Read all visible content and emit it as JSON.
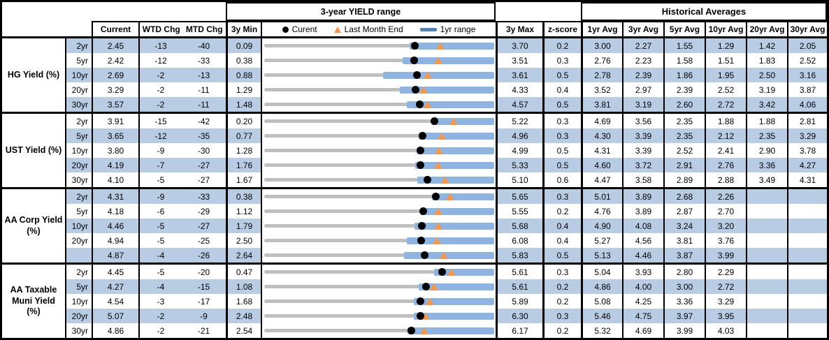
{
  "colors": {
    "row_band": "#b8cce4",
    "range_bar": "#8db4e3",
    "legend_bar": "#4f81bd",
    "track": "#bfbfbf",
    "current_dot": "#000000",
    "last_month_triangle": "#f79646",
    "border": "#000000"
  },
  "chart_data": {
    "type": "range_bullet_table",
    "title": "3-year YIELD range",
    "historical_title": "Historical Averages",
    "legend": [
      {
        "marker": "dot",
        "label": "Curent"
      },
      {
        "marker": "triangle",
        "label": "Last Month End"
      },
      {
        "marker": "bar",
        "label": "1yr range"
      }
    ],
    "columns": [
      "Current",
      "WTD Chg",
      "MTD Chg",
      "3y Min",
      "3y Max",
      "z-score",
      "1yr Avg",
      "3yr Avg",
      "5yr Avg",
      "10yr Avg",
      "20yr Avg",
      "30yr Avg"
    ],
    "axis_note": "each row plotted on its own scale from 3y Min to 3y Max",
    "groups": [
      {
        "label": "HG Yield (%)",
        "label_lines": [
          "HG Yield (%)"
        ],
        "rows": [
          {
            "tenor": "2yr",
            "current": "2.45",
            "wtd_chg": "-13",
            "mtd_chg": "-40",
            "min_3y": "0.09",
            "max_3y": "3.70",
            "last_month_end": 2.85,
            "range_1yr": [
              2.37,
              3.7
            ],
            "z_score": "0.2",
            "averages": [
              "3.00",
              "2.27",
              "1.55",
              "1.29",
              "1.42",
              "2.05"
            ]
          },
          {
            "tenor": "5yr",
            "current": "2.42",
            "wtd_chg": "-12",
            "mtd_chg": "-33",
            "min_3y": "0.38",
            "max_3y": "3.51",
            "last_month_end": 2.75,
            "range_1yr": [
              2.26,
              3.51
            ],
            "z_score": "0.3",
            "averages": [
              "2.76",
              "2.23",
              "1.58",
              "1.51",
              "1.83",
              "2.52"
            ]
          },
          {
            "tenor": "10yr",
            "current": "2.69",
            "wtd_chg": "-2",
            "mtd_chg": "-13",
            "min_3y": "0.88",
            "max_3y": "3.61",
            "last_month_end": 2.82,
            "range_1yr": [
              2.29,
              3.61
            ],
            "z_score": "0.5",
            "averages": [
              "2.78",
              "2.39",
              "1.86",
              "1.95",
              "2.50",
              "3.16"
            ]
          },
          {
            "tenor": "20yr",
            "current": "3.29",
            "wtd_chg": "-2",
            "mtd_chg": "-11",
            "min_3y": "1.29",
            "max_3y": "4.33",
            "last_month_end": 3.4,
            "range_1yr": [
              3.08,
              4.33
            ],
            "z_score": "0.4",
            "averages": [
              "3.52",
              "2.97",
              "2.39",
              "2.52",
              "3.19",
              "3.87"
            ]
          },
          {
            "tenor": "30yr",
            "current": "3.57",
            "wtd_chg": "-2",
            "mtd_chg": "-11",
            "min_3y": "1.48",
            "max_3y": "4.57",
            "last_month_end": 3.68,
            "range_1yr": [
              3.4,
              4.57
            ],
            "z_score": "0.5",
            "averages": [
              "3.81",
              "3.19",
              "2.60",
              "2.72",
              "3.42",
              "4.06"
            ]
          }
        ]
      },
      {
        "label": "UST Yield (%)",
        "label_lines": [
          "UST Yield (%)"
        ],
        "rows": [
          {
            "tenor": "2yr",
            "current": "3.91",
            "wtd_chg": "-15",
            "mtd_chg": "-42",
            "min_3y": "0.20",
            "max_3y": "5.22",
            "last_month_end": 4.33,
            "range_1yr": [
              3.84,
              5.22
            ],
            "z_score": "0.3",
            "averages": [
              "4.69",
              "3.56",
              "2.35",
              "1.88",
              "1.88",
              "2.81"
            ]
          },
          {
            "tenor": "5yr",
            "current": "3.65",
            "wtd_chg": "-12",
            "mtd_chg": "-35",
            "min_3y": "0.77",
            "max_3y": "4.96",
            "last_month_end": 4.0,
            "range_1yr": [
              3.58,
              4.96
            ],
            "z_score": "0.3",
            "averages": [
              "4.30",
              "3.39",
              "2.35",
              "2.12",
              "2.35",
              "3.29"
            ]
          },
          {
            "tenor": "10yr",
            "current": "3.80",
            "wtd_chg": "-9",
            "mtd_chg": "-30",
            "min_3y": "1.28",
            "max_3y": "4.99",
            "last_month_end": 4.1,
            "range_1yr": [
              3.74,
              4.99
            ],
            "z_score": "0.5",
            "averages": [
              "4.31",
              "3.39",
              "2.52",
              "2.41",
              "2.90",
              "3.78"
            ]
          },
          {
            "tenor": "20yr",
            "current": "4.19",
            "wtd_chg": "-7",
            "mtd_chg": "-27",
            "min_3y": "1.76",
            "max_3y": "5.33",
            "last_month_end": 4.46,
            "range_1yr": [
              4.1,
              5.33
            ],
            "z_score": "0.5",
            "averages": [
              "4.60",
              "3.72",
              "2.91",
              "2.76",
              "3.36",
              "4.27"
            ]
          },
          {
            "tenor": "30yr",
            "current": "4.10",
            "wtd_chg": "-5",
            "mtd_chg": "-27",
            "min_3y": "1.67",
            "max_3y": "5.10",
            "last_month_end": 4.37,
            "range_1yr": [
              3.95,
              5.1
            ],
            "z_score": "0.6",
            "averages": [
              "4.47",
              "3.58",
              "2.89",
              "2.88",
              "3.49",
              "4.31"
            ]
          }
        ]
      },
      {
        "label": "AA Corp Yield (%)",
        "label_lines": [
          "AA Corp Yield",
          "(%)"
        ],
        "rows": [
          {
            "tenor": "2yr",
            "current": "4.31",
            "wtd_chg": "-9",
            "mtd_chg": "-33",
            "min_3y": "0.38",
            "max_3y": "5.65",
            "last_month_end": 4.64,
            "range_1yr": [
              4.23,
              5.65
            ],
            "z_score": "0.3",
            "averages": [
              "5.01",
              "3.89",
              "2.68",
              "2.26",
              "",
              ""
            ]
          },
          {
            "tenor": "5yr",
            "current": "4.18",
            "wtd_chg": "-6",
            "mtd_chg": "-29",
            "min_3y": "1.12",
            "max_3y": "5.55",
            "last_month_end": 4.47,
            "range_1yr": [
              4.12,
              5.55
            ],
            "z_score": "0.2",
            "averages": [
              "4.76",
              "3.89",
              "2.87",
              "2.70",
              "",
              ""
            ]
          },
          {
            "tenor": "10yr",
            "current": "4.46",
            "wtd_chg": "-5",
            "mtd_chg": "-27",
            "min_3y": "1.79",
            "max_3y": "5.68",
            "last_month_end": 4.73,
            "range_1yr": [
              4.33,
              5.68
            ],
            "z_score": "0.4",
            "averages": [
              "4.90",
              "4.08",
              "3.24",
              "3.20",
              "",
              ""
            ]
          },
          {
            "tenor": "20yr",
            "current": "4.94",
            "wtd_chg": "-5",
            "mtd_chg": "-25",
            "min_3y": "2.50",
            "max_3y": "6.08",
            "last_month_end": 5.19,
            "range_1yr": [
              4.72,
              6.08
            ],
            "z_score": "0.4",
            "averages": [
              "5.27",
              "4.56",
              "3.81",
              "3.76",
              "",
              ""
            ]
          },
          {
            "tenor": "",
            "current": "4.87",
            "wtd_chg": "-4",
            "mtd_chg": "-26",
            "min_3y": "2.64",
            "max_3y": "5.83",
            "last_month_end": 5.13,
            "range_1yr": [
              4.58,
              5.83
            ],
            "z_score": "0.5",
            "averages": [
              "5.13",
              "4.46",
              "3.87",
              "3.99",
              "",
              ""
            ]
          }
        ]
      },
      {
        "label": "AA Taxable Muni Yield (%)",
        "label_lines": [
          "AA Taxable",
          "Muni Yield",
          "(%)"
        ],
        "rows": [
          {
            "tenor": "2yr",
            "current": "4.45",
            "wtd_chg": "-5",
            "mtd_chg": "-20",
            "min_3y": "0.47",
            "max_3y": "5.61",
            "last_month_end": 4.65,
            "range_1yr": [
              4.27,
              5.61
            ],
            "z_score": "0.3",
            "averages": [
              "5.04",
              "3.93",
              "2.80",
              "2.29",
              "",
              ""
            ]
          },
          {
            "tenor": "5yr",
            "current": "4.27",
            "wtd_chg": "-4",
            "mtd_chg": "-15",
            "min_3y": "1.08",
            "max_3y": "5.61",
            "last_month_end": 4.42,
            "range_1yr": [
              4.12,
              5.61
            ],
            "z_score": "0.2",
            "averages": [
              "4.86",
              "4.00",
              "3.00",
              "2.72",
              "",
              ""
            ]
          },
          {
            "tenor": "10yr",
            "current": "4.54",
            "wtd_chg": "-3",
            "mtd_chg": "-17",
            "min_3y": "1.68",
            "max_3y": "5.89",
            "last_month_end": 4.71,
            "range_1yr": [
              4.42,
              5.89
            ],
            "z_score": "0.2",
            "averages": [
              "5.08",
              "4.25",
              "3.36",
              "3.29",
              "",
              ""
            ]
          },
          {
            "tenor": "20yr",
            "current": "5.07",
            "wtd_chg": "-2",
            "mtd_chg": "-9",
            "min_3y": "2.48",
            "max_3y": "6.30",
            "last_month_end": 5.16,
            "range_1yr": [
              4.96,
              6.3
            ],
            "z_score": "0.3",
            "averages": [
              "5.46",
              "4.75",
              "3.97",
              "3.95",
              "",
              ""
            ]
          },
          {
            "tenor": "30yr",
            "current": "4.86",
            "wtd_chg": "-2",
            "mtd_chg": "-21",
            "min_3y": "2.54",
            "max_3y": "6.17",
            "last_month_end": 5.07,
            "range_1yr": [
              4.8,
              6.17
            ],
            "z_score": "0.2",
            "averages": [
              "5.32",
              "4.69",
              "3.99",
              "4.03",
              "",
              ""
            ]
          }
        ]
      }
    ]
  }
}
